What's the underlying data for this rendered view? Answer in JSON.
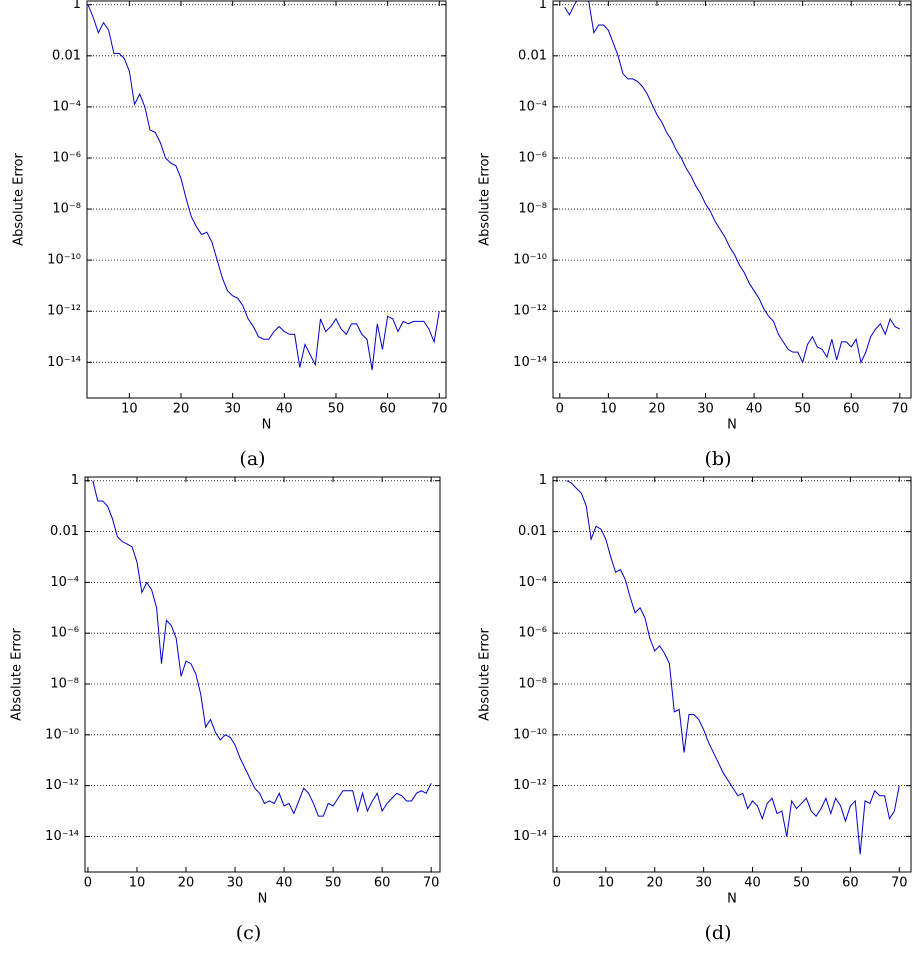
{
  "chart_data": [
    {
      "type": "line",
      "caption": "(a)",
      "xlabel": "N",
      "ylabel": "Absolute Error",
      "yscale": "log",
      "grid": true,
      "color": "#0000cc",
      "x": [
        2,
        3,
        4,
        5,
        6,
        7,
        8,
        9,
        10,
        11,
        12,
        13,
        14,
        15,
        16,
        17,
        18,
        19,
        20,
        21,
        22,
        23,
        24,
        25,
        26,
        27,
        28,
        29,
        30,
        31,
        32,
        33,
        34,
        35,
        36,
        37,
        38,
        39,
        40,
        41,
        42,
        43,
        44,
        45,
        46,
        47,
        48,
        49,
        50,
        51,
        52,
        53,
        54,
        55,
        56,
        57,
        58,
        59,
        60,
        61,
        62,
        63,
        64,
        65,
        66,
        67,
        68,
        69,
        70
      ],
      "values": [
        1,
        0.32,
        0.08,
        0.2,
        0.1,
        0.0125,
        0.0125,
        0.008,
        0.0025,
        0.000125,
        0.00032,
        0.0001,
        1.25e-05,
        1e-05,
        4e-06,
        1e-06,
        6.3e-07,
        5e-07,
        1.6e-07,
        2.5e-08,
        5e-09,
        2e-09,
        1e-09,
        1.25e-09,
        5e-10,
        1e-10,
        2e-11,
        6.3e-12,
        4e-12,
        3.2e-12,
        1.6e-12,
        5e-13,
        2.5e-13,
        1e-13,
        8e-14,
        8e-14,
        1.6e-13,
        2.5e-13,
        1.6e-13,
        1.25e-13,
        1.25e-13,
        6.3e-15,
        5e-14,
        2e-14,
        8e-15,
        5e-13,
        1.6e-13,
        2.5e-13,
        5e-13,
        2e-13,
        1.25e-13,
        3.2e-13,
        3.2e-13,
        1.25e-13,
        8e-14,
        5e-15,
        3.2e-13,
        3.2e-14,
        6.3e-13,
        5e-13,
        1.6e-13,
        4e-13,
        3.2e-13,
        4e-13,
        4e-13,
        4e-13,
        2e-13,
        6.3e-14,
        1e-12
      ],
      "xlim": [
        1.8,
        71.3
      ],
      "xticks": [
        10,
        20,
        30,
        40,
        50,
        60,
        70
      ],
      "ylim": [
        4e-16,
        1.4
      ],
      "yticks": [
        1,
        0.01,
        {
          "value": 0.0001,
          "label": "10⁻⁴"
        },
        {
          "value": 1e-06,
          "label": "10⁻⁶"
        },
        {
          "value": 1e-08,
          "label": "10⁻⁸"
        },
        {
          "value": 1e-10,
          "label": "10⁻¹⁰"
        },
        {
          "value": 1e-12,
          "label": "10⁻¹²"
        },
        {
          "value": 1e-14,
          "label": "10⁻¹⁴"
        }
      ]
    },
    {
      "type": "line",
      "caption": "(b)",
      "xlabel": "N",
      "ylabel": "Absolute Error",
      "yscale": "log",
      "grid": true,
      "color": "#0000cc",
      "x": [
        1,
        2,
        3,
        4,
        5,
        6,
        7,
        8,
        9,
        10,
        11,
        12,
        13,
        14,
        15,
        16,
        17,
        18,
        19,
        20,
        21,
        22,
        23,
        24,
        25,
        26,
        27,
        28,
        29,
        30,
        31,
        32,
        33,
        34,
        35,
        36,
        37,
        38,
        39,
        40,
        41,
        42,
        43,
        44,
        45,
        46,
        47,
        48,
        49,
        50,
        51,
        52,
        53,
        54,
        55,
        56,
        57,
        58,
        59,
        60,
        61,
        62,
        63,
        64,
        65,
        66,
        67,
        68,
        69,
        70
      ],
      "values": [
        0.8,
        0.4,
        1,
        2,
        2.5,
        1.25,
        0.08,
        0.16,
        0.16,
        0.1,
        0.032,
        0.01,
        0.002,
        0.00125,
        0.00125,
        0.001,
        0.00063,
        0.00032,
        0.000125,
        5e-05,
        2.5e-05,
        1e-05,
        5e-06,
        2e-06,
        1e-06,
        4e-07,
        2e-07,
        8e-08,
        4e-08,
        1.6e-08,
        8e-09,
        3.2e-09,
        1.6e-09,
        8e-10,
        3.2e-10,
        1.6e-10,
        6.3e-11,
        3.2e-11,
        1.25e-11,
        6.3e-12,
        3.2e-12,
        1.25e-12,
        6.3e-13,
        4e-13,
        1.25e-13,
        6.3e-14,
        3.2e-14,
        2.5e-14,
        2.5e-14,
        1e-14,
        5e-14,
        1e-13,
        4e-14,
        3.2e-14,
        1.6e-14,
        8e-14,
        1.25e-14,
        6.3e-14,
        6.3e-14,
        4e-14,
        8e-14,
        1e-14,
        2.5e-14,
        1e-13,
        2e-13,
        3.2e-13,
        1.25e-13,
        5e-13,
        2.5e-13,
        2e-13
      ],
      "xlim": [
        -1.4,
        72.3
      ],
      "xticks": [
        0,
        10,
        20,
        30,
        40,
        50,
        60,
        70
      ],
      "ylim": [
        4e-16,
        1.4
      ],
      "yticks": [
        1,
        0.01,
        {
          "value": 0.0001,
          "label": "10⁻⁴"
        },
        {
          "value": 1e-06,
          "label": "10⁻⁶"
        },
        {
          "value": 1e-08,
          "label": "10⁻⁸"
        },
        {
          "value": 1e-10,
          "label": "10⁻¹⁰"
        },
        {
          "value": 1e-12,
          "label": "10⁻¹²"
        },
        {
          "value": 1e-14,
          "label": "10⁻¹⁴"
        }
      ]
    },
    {
      "type": "line",
      "caption": "(c)",
      "xlabel": "N",
      "ylabel": "Absolute Error",
      "yscale": "log",
      "grid": true,
      "color": "#0000cc",
      "x": [
        1,
        2,
        3,
        4,
        5,
        6,
        7,
        8,
        9,
        10,
        11,
        12,
        13,
        14,
        15,
        16,
        17,
        18,
        19,
        20,
        21,
        22,
        23,
        24,
        25,
        26,
        27,
        28,
        29,
        30,
        31,
        32,
        33,
        34,
        35,
        36,
        37,
        38,
        39,
        40,
        41,
        42,
        43,
        44,
        45,
        46,
        47,
        48,
        49,
        50,
        51,
        52,
        53,
        54,
        55,
        56,
        57,
        58,
        59,
        60,
        61,
        62,
        63,
        64,
        65,
        66,
        67,
        68,
        69,
        70
      ],
      "values": [
        1,
        0.16,
        0.16,
        0.1,
        0.032,
        0.0063,
        0.004,
        0.0032,
        0.0025,
        0.00063,
        4e-05,
        0.0001,
        5e-05,
        1e-05,
        6.3e-08,
        3.2e-06,
        2e-06,
        6.3e-07,
        2e-08,
        8e-08,
        6.3e-08,
        2.5e-08,
        4e-09,
        2e-10,
        4e-10,
        1.25e-10,
        6.3e-11,
        1e-10,
        8e-11,
        4e-11,
        1.25e-11,
        5e-12,
        2e-12,
        8e-13,
        5e-13,
        2e-13,
        2.5e-13,
        2e-13,
        5e-13,
        1.6e-13,
        2e-13,
        8e-14,
        2.5e-13,
        8e-13,
        5e-13,
        2e-13,
        6.3e-14,
        6.3e-14,
        2e-13,
        1.6e-13,
        3.2e-13,
        6.3e-13,
        6.3e-13,
        6.3e-13,
        1e-13,
        5e-13,
        1e-13,
        2.5e-13,
        5e-13,
        1e-13,
        2e-13,
        3.2e-13,
        5e-13,
        4e-13,
        2.5e-13,
        2.5e-13,
        5e-13,
        6.3e-13,
        5e-13,
        1.25e-12
      ],
      "xlim": [
        -0.6,
        71.8
      ],
      "xticks": [
        0,
        10,
        20,
        30,
        40,
        50,
        60,
        70
      ],
      "ylim": [
        4e-16,
        1.4
      ],
      "yticks": [
        1,
        0.01,
        {
          "value": 0.0001,
          "label": "10⁻⁴"
        },
        {
          "value": 1e-06,
          "label": "10⁻⁶"
        },
        {
          "value": 1e-08,
          "label": "10⁻⁸"
        },
        {
          "value": 1e-10,
          "label": "10⁻¹⁰"
        },
        {
          "value": 1e-12,
          "label": "10⁻¹²"
        },
        {
          "value": 1e-14,
          "label": "10⁻¹⁴"
        }
      ]
    },
    {
      "type": "line",
      "caption": "(d)",
      "xlabel": "N",
      "ylabel": "Absolute Error",
      "yscale": "log",
      "grid": true,
      "color": "#0000cc",
      "x": [
        2,
        3,
        4,
        5,
        6,
        7,
        8,
        9,
        10,
        11,
        12,
        13,
        14,
        15,
        16,
        17,
        18,
        19,
        20,
        21,
        22,
        23,
        24,
        25,
        26,
        27,
        28,
        29,
        30,
        31,
        32,
        33,
        34,
        35,
        36,
        37,
        38,
        39,
        40,
        41,
        42,
        43,
        44,
        45,
        46,
        47,
        48,
        49,
        50,
        51,
        52,
        53,
        54,
        55,
        56,
        57,
        58,
        59,
        60,
        61,
        62,
        63,
        64,
        65,
        66,
        67,
        68,
        69,
        70
      ],
      "values": [
        1,
        0.8,
        0.5,
        0.32,
        0.1,
        0.005,
        0.016,
        0.0125,
        0.005,
        0.001,
        0.00025,
        0.00032,
        0.000125,
        2.5e-05,
        6.3e-06,
        1e-05,
        4e-06,
        6.3e-07,
        2e-07,
        3.2e-07,
        1.6e-07,
        6.3e-08,
        8e-10,
        1e-09,
        2e-11,
        6.3e-10,
        6.3e-10,
        4e-10,
        1.6e-10,
        5e-11,
        2e-11,
        8e-12,
        3.2e-12,
        1.6e-12,
        8e-13,
        4e-13,
        5e-13,
        1.25e-13,
        2.5e-13,
        1.6e-13,
        5e-14,
        2e-13,
        3.2e-13,
        8e-14,
        1e-13,
        1e-14,
        2.5e-13,
        1.25e-13,
        2e-13,
        3.2e-13,
        1e-13,
        6.3e-14,
        1.25e-13,
        3.2e-13,
        8e-14,
        3.2e-13,
        1.6e-13,
        4e-14,
        1.6e-13,
        2.5e-13,
        2e-15,
        2.5e-13,
        2e-13,
        6.3e-13,
        4e-13,
        4e-13,
        5e-14,
        1e-13,
        1e-12
      ],
      "xlim": [
        -0.8,
        72.4
      ],
      "xticks": [
        0,
        10,
        20,
        30,
        40,
        50,
        60,
        70
      ],
      "ylim": [
        4e-16,
        1.4
      ],
      "yticks": [
        1,
        0.01,
        {
          "value": 0.0001,
          "label": "10⁻⁴"
        },
        {
          "value": 1e-06,
          "label": "10⁻⁶"
        },
        {
          "value": 1e-08,
          "label": "10⁻⁸"
        },
        {
          "value": 1e-10,
          "label": "10⁻¹⁰"
        },
        {
          "value": 1e-12,
          "label": "10⁻¹²"
        },
        {
          "value": 1e-14,
          "label": "10⁻¹⁴"
        }
      ]
    }
  ]
}
